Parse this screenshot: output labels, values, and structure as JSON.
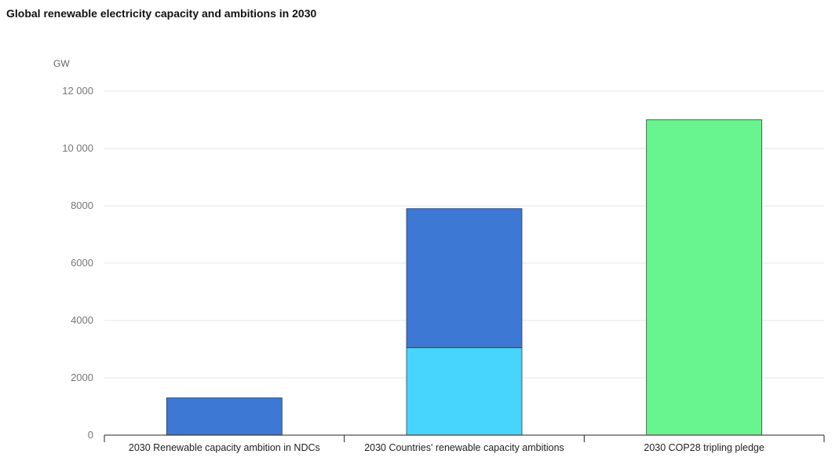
{
  "chart_data": {
    "type": "bar",
    "stacked": true,
    "title": "Global renewable electricity capacity and ambitions in 2030",
    "ylabel": "GW",
    "ylim": [
      0,
      12000
    ],
    "yticks": [
      0,
      2000,
      4000,
      6000,
      8000,
      10000,
      12000
    ],
    "ytick_labels": [
      "0",
      "2000",
      "4000",
      "6000",
      "8000",
      "10 000",
      "12 000"
    ],
    "grid": true,
    "legend": "none",
    "categories": [
      "2030 Renewable capacity ambition in NDCs",
      "2030 Countries' renewable capacity ambitions",
      "2030 COP28 tripling pledge"
    ],
    "segments": [
      [
        {
          "value": 1300,
          "color": "#3d78d4"
        }
      ],
      [
        {
          "value": 3050,
          "color": "#47d4fd"
        },
        {
          "value": 4850,
          "color": "#3d78d4"
        }
      ],
      [
        {
          "value": 11000,
          "color": "#68f48e"
        }
      ]
    ]
  }
}
